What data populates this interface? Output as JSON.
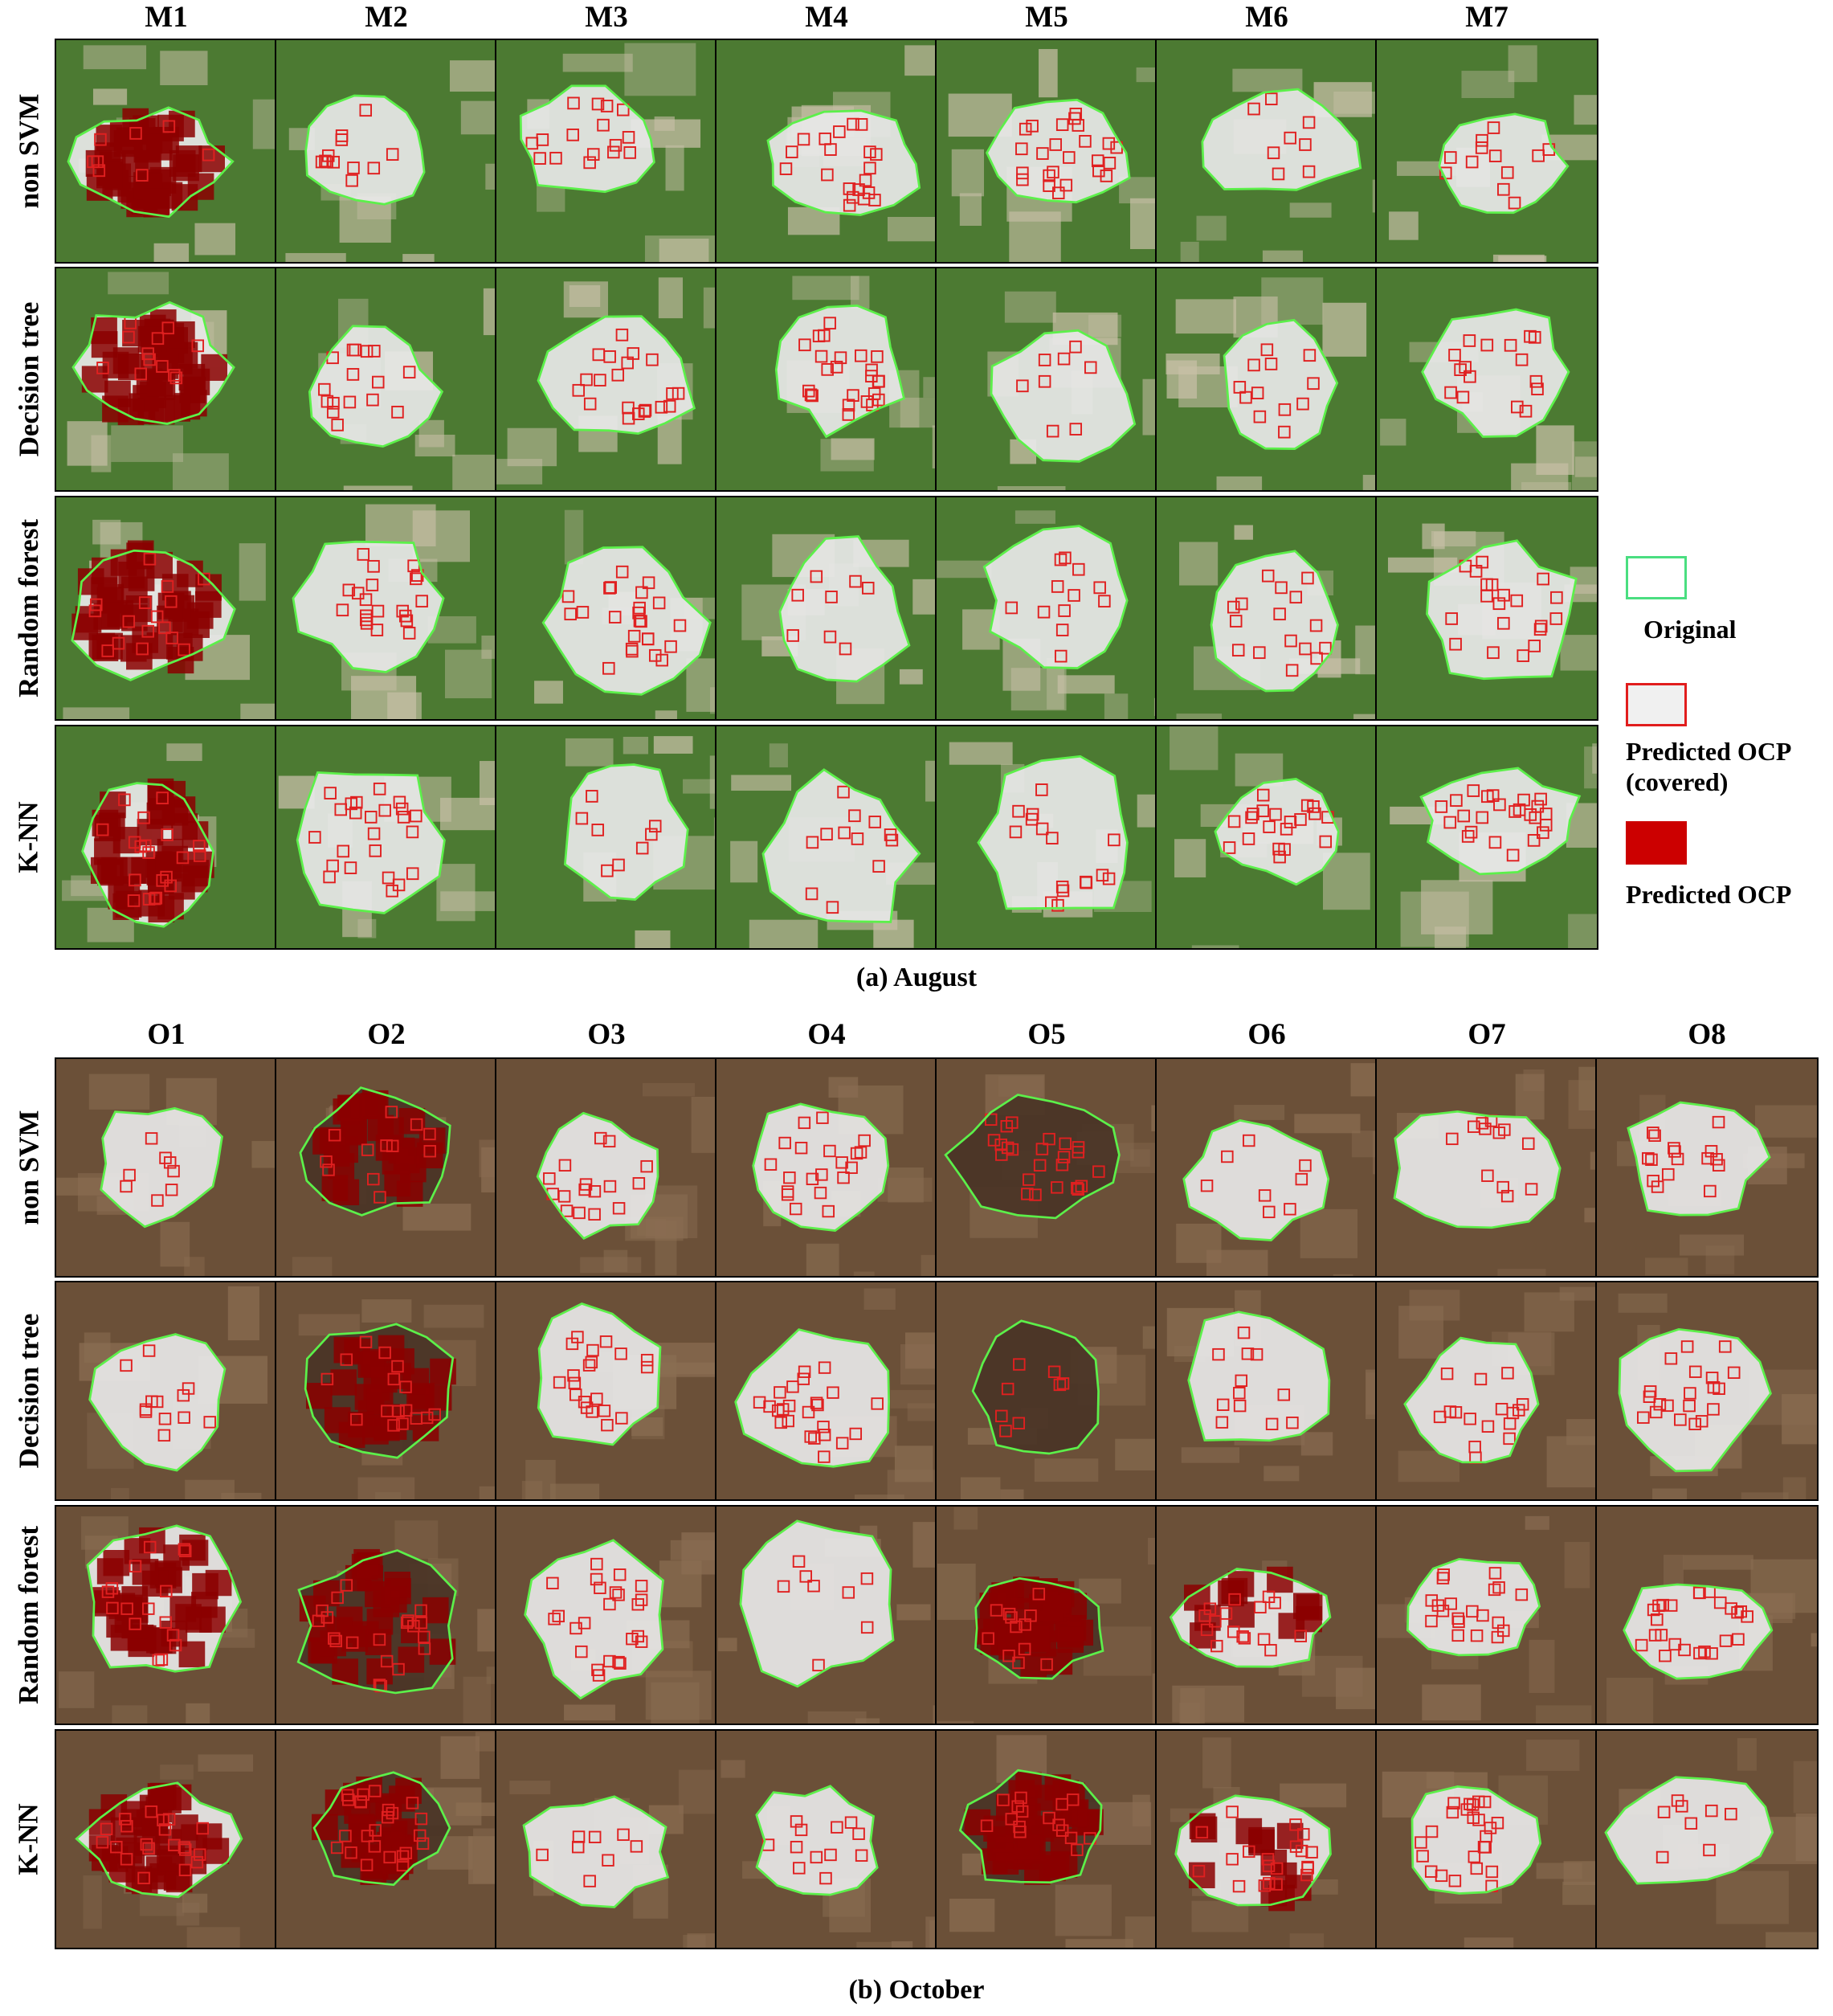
{
  "august": {
    "columns": [
      "M1",
      "M2",
      "M3",
      "M4",
      "M5",
      "M6",
      "M7"
    ],
    "rows": [
      "non SVM",
      "Decision tree",
      "Random forest",
      "K-NN"
    ],
    "caption": "(a) August"
  },
  "october": {
    "columns": [
      "O1",
      "O2",
      "O3",
      "O4",
      "O5",
      "O6",
      "O7",
      "O8"
    ],
    "rows": [
      "non SVM",
      "Decision tree",
      "Random forest",
      "K-NN"
    ],
    "caption": "(b) October"
  },
  "legend": [
    {
      "label": "Original",
      "border": "#4ade80",
      "fill": "#ffffff"
    },
    {
      "label": "Predicted OCP\n(covered)",
      "border": "#e11d1d",
      "fill": "#f0f0f0"
    },
    {
      "label": "Predicted OCP",
      "border": "#cc0000",
      "fill": "#cc0000"
    }
  ],
  "colors": {
    "outline_original": "#5cf04a",
    "outline_predicted": "#e02020",
    "predicted_fill": "#8b0000",
    "cover_sheet": "#e8e8e8",
    "vegetation": "#4c7a32",
    "soil_august": "#c9c0a8",
    "soil_october": "#6b5038"
  }
}
